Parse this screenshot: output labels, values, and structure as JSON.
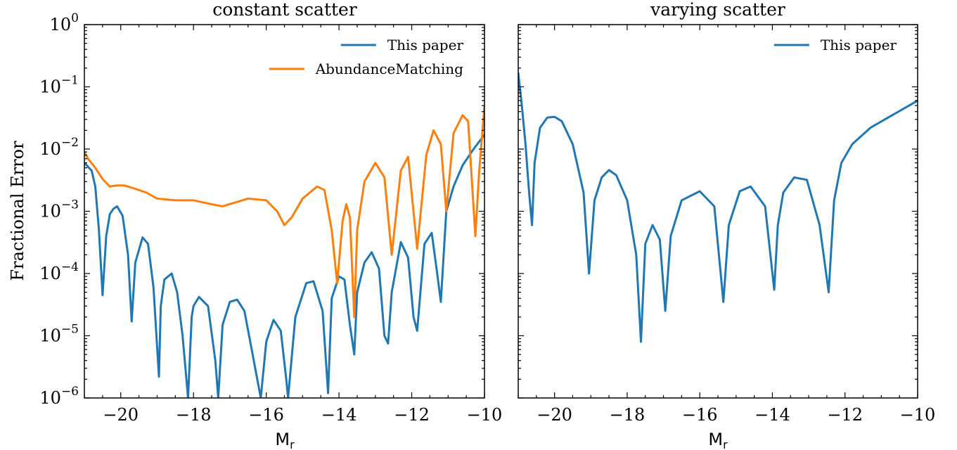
{
  "figure": {
    "ylabel": "Fractional Error",
    "shared_y_ticks": [
      "0",
      "-1",
      "-2",
      "-3",
      "-4",
      "-5",
      "-6"
    ]
  },
  "chart_data": [
    {
      "type": "line",
      "title": "constant scatter",
      "xlabel": "M",
      "xlabel_sub": "r",
      "ylabel": "Fractional Error",
      "yscale": "log",
      "xlim": [
        -21,
        -10
      ],
      "ylim": [
        1e-06,
        1
      ],
      "xticks": [
        -20,
        -18,
        -16,
        -14,
        -12,
        -10
      ],
      "xtick_labels": [
        "−20",
        "−18",
        "−16",
        "−14",
        "−12",
        "−10"
      ],
      "grid": false,
      "legend_position": "upper-right",
      "series": [
        {
          "name": "This paper",
          "color": "#1f77b4",
          "x": [
            -21,
            -20.8,
            -20.7,
            -20.6,
            -20.5,
            -20.4,
            -20.3,
            -20.2,
            -20.1,
            -19.95,
            -19.8,
            -19.7,
            -19.6,
            -19.4,
            -19.25,
            -19.1,
            -18.95,
            -18.9,
            -18.8,
            -18.6,
            -18.45,
            -18.3,
            -18.15,
            -18.05,
            -18.0,
            -17.85,
            -17.6,
            -17.4,
            -17.32,
            -17.2,
            -17.0,
            -16.8,
            -16.6,
            -16.4,
            -16.15,
            -16.05,
            -16.0,
            -15.8,
            -15.6,
            -15.45,
            -15.4,
            -15.2,
            -14.9,
            -14.7,
            -14.45,
            -14.3,
            -14.2,
            -14.0,
            -13.85,
            -13.7,
            -13.58,
            -13.5,
            -13.3,
            -13.1,
            -12.9,
            -12.75,
            -12.65,
            -12.55,
            -12.3,
            -12.1,
            -11.95,
            -11.85,
            -11.65,
            -11.45,
            -11.3,
            -11.2,
            -11.05,
            -10.85,
            -10.6,
            -10.3,
            -10.0
          ],
          "y": [
            0.006,
            0.0045,
            0.0025,
            0.0005,
            4.5e-05,
            0.0004,
            0.0009,
            0.0011,
            0.0012,
            0.00085,
            0.0002,
            1.7e-05,
            0.00015,
            0.00038,
            0.0003,
            6e-05,
            2.2e-06,
            3e-05,
            8e-05,
            0.0001,
            5e-05,
            1e-05,
            1e-06,
            2e-05,
            3e-05,
            4.2e-05,
            3e-05,
            4e-06,
            1e-06,
            1.5e-05,
            3.5e-05,
            3.8e-05,
            2.5e-05,
            6e-06,
            1e-06,
            4e-06,
            8e-06,
            1.8e-05,
            1.2e-05,
            2e-06,
            1e-06,
            2e-05,
            7e-05,
            7.5e-05,
            2.5e-05,
            1.2e-06,
            4e-05,
            9e-05,
            8e-05,
            1.5e-05,
            5e-06,
            5e-05,
            0.00015,
            0.00022,
            0.00012,
            1e-05,
            7.5e-06,
            5e-05,
            0.00032,
            0.00018,
            2e-05,
            1.2e-05,
            0.0003,
            0.00045,
            0.0001,
            3.5e-05,
            0.001,
            0.0025,
            0.0055,
            0.01,
            0.017
          ]
        },
        {
          "name": "AbundanceMatching",
          "color": "#ff7f0e",
          "x": [
            -21,
            -20.9,
            -20.7,
            -20.5,
            -20.3,
            -20.1,
            -19.9,
            -19.6,
            -19.3,
            -19.0,
            -18.5,
            -18.0,
            -17.5,
            -17.2,
            -16.5,
            -16.0,
            -15.7,
            -15.5,
            -15.3,
            -15.0,
            -14.6,
            -14.4,
            -14.2,
            -14.05,
            -13.9,
            -13.8,
            -13.7,
            -13.58,
            -13.5,
            -13.3,
            -13.0,
            -12.75,
            -12.55,
            -12.3,
            -12.1,
            -11.85,
            -11.6,
            -11.4,
            -11.2,
            -11.05,
            -10.85,
            -10.6,
            -10.45,
            -10.25,
            -10.15,
            -10.0
          ],
          "y": [
            0.009,
            0.007,
            0.005,
            0.0033,
            0.0025,
            0.0026,
            0.0026,
            0.0023,
            0.002,
            0.0016,
            0.0015,
            0.0015,
            0.0013,
            0.0012,
            0.0016,
            0.0015,
            0.001,
            0.0006,
            0.0008,
            0.0016,
            0.0025,
            0.0022,
            0.0005,
            7e-05,
            0.0007,
            0.0013,
            0.0008,
            2e-05,
            0.0005,
            0.003,
            0.006,
            0.0035,
            0.0002,
            0.0045,
            0.0075,
            0.00025,
            0.008,
            0.02,
            0.012,
            0.001,
            0.018,
            0.035,
            0.028,
            0.0004,
            0.004,
            0.05
          ]
        }
      ]
    },
    {
      "type": "line",
      "title": "varying scatter",
      "xlabel": "M",
      "xlabel_sub": "r",
      "yscale": "log",
      "xlim": [
        -21,
        -10
      ],
      "ylim": [
        1e-06,
        1
      ],
      "xticks": [
        -20,
        -18,
        -16,
        -14,
        -12,
        -10
      ],
      "xtick_labels": [
        "−20",
        "−18",
        "−16",
        "−14",
        "−12",
        "−10"
      ],
      "grid": false,
      "legend_position": "upper-right",
      "series": [
        {
          "name": "This paper",
          "color": "#1f77b4",
          "x": [
            -21,
            -20.9,
            -20.8,
            -20.7,
            -20.62,
            -20.55,
            -20.4,
            -20.2,
            -20.0,
            -19.8,
            -19.5,
            -19.2,
            -19.05,
            -18.9,
            -18.7,
            -18.5,
            -18.3,
            -18.0,
            -17.75,
            -17.62,
            -17.5,
            -17.3,
            -17.1,
            -16.95,
            -16.8,
            -16.5,
            -16.0,
            -15.6,
            -15.35,
            -15.2,
            -14.9,
            -14.6,
            -14.2,
            -13.95,
            -13.85,
            -13.7,
            -13.4,
            -13.05,
            -12.7,
            -12.45,
            -12.3,
            -12.1,
            -11.8,
            -11.3,
            -10.7,
            -10.0
          ],
          "y": [
            0.17,
            0.05,
            0.012,
            0.002,
            0.0006,
            0.006,
            0.022,
            0.032,
            0.033,
            0.028,
            0.012,
            0.002,
            0.0001,
            0.0015,
            0.0035,
            0.0046,
            0.0038,
            0.0015,
            0.0002,
            8e-06,
            0.0003,
            0.0006,
            0.00035,
            2.5e-05,
            0.0004,
            0.0015,
            0.0021,
            0.0012,
            3.5e-05,
            0.0006,
            0.0021,
            0.0025,
            0.0012,
            5.5e-05,
            0.0006,
            0.002,
            0.0035,
            0.0032,
            0.0006,
            5e-05,
            0.0015,
            0.006,
            0.012,
            0.022,
            0.035,
            0.06
          ]
        }
      ]
    }
  ]
}
